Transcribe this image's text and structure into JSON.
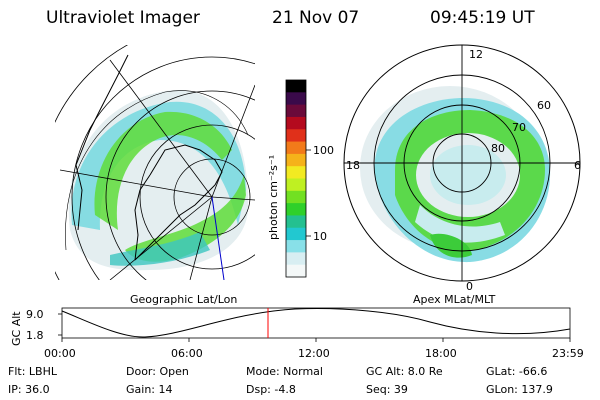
{
  "header": {
    "instrument": "Ultraviolet Imager",
    "date": "21 Nov 07",
    "time": "09:45:19 UT"
  },
  "colorbar": {
    "unit_label": "photon cm⁻²s⁻¹",
    "ticks": [
      "100",
      "10"
    ],
    "colors": [
      "#000000",
      "#3a0a4a",
      "#6a0a3a",
      "#b40a1e",
      "#e0301a",
      "#f27a1a",
      "#f5b21a",
      "#f2ea22",
      "#bff022",
      "#72e022",
      "#2fd02a",
      "#24c090",
      "#22c8d0",
      "#88e0e8",
      "#d8eef2",
      "#f4f8f8"
    ]
  },
  "left_map": {
    "caption": "Geographic Lat/Lon"
  },
  "right_map": {
    "caption": "Apex MLat/MLT",
    "mlt_labels": [
      "12",
      "18",
      "6",
      "0"
    ],
    "lat_labels": [
      "60",
      "70",
      "80"
    ]
  },
  "timeline": {
    "y_label": "GC Alt",
    "y_ticks": [
      "9.0",
      "1.8"
    ],
    "x_ticks": [
      "00:00",
      "06:00",
      "12:00",
      "18:00",
      "23:59"
    ],
    "marker_color": "#ff0000",
    "current_time": "09:45"
  },
  "info": {
    "filter": "Flt: LBHL",
    "ip": "IP: 36.0",
    "door": "Door: Open",
    "gain": "Gain: 14",
    "mode": "Mode: Normal",
    "dsp": "Dsp:    -4.8",
    "gc_alt": "GC Alt: 8.0 Re",
    "seq": "Seq: 39",
    "glat": "GLat: -66.6",
    "glon": "GLon: 137.9"
  }
}
